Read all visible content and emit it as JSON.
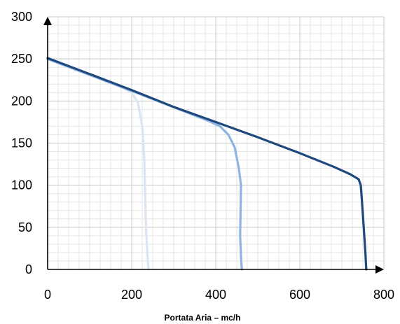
{
  "chart_data": {
    "type": "line",
    "title": "",
    "xlabel": "Portata Aria – mc/h",
    "ylabel": "",
    "xlim": [
      0,
      800
    ],
    "ylim": [
      0,
      300
    ],
    "x_ticks": [
      "0",
      "200",
      "400",
      "600",
      "800"
    ],
    "y_ticks": [
      "0",
      "50",
      "100",
      "150",
      "200",
      "250",
      "300"
    ],
    "grid": true,
    "legend": "none",
    "series": [
      {
        "color": "#dbe5f1",
        "points": [
          [
            0,
            250
          ],
          [
            100,
            231
          ],
          [
            170,
            218
          ],
          [
            200,
            210
          ],
          [
            215,
            198
          ],
          [
            225,
            170
          ],
          [
            230,
            130
          ],
          [
            232,
            90
          ],
          [
            234,
            50
          ],
          [
            237,
            20
          ],
          [
            240,
            0
          ]
        ]
      },
      {
        "color": "#8eb4e3",
        "points": [
          [
            0,
            250
          ],
          [
            200,
            212
          ],
          [
            380,
            177
          ],
          [
            410,
            170
          ],
          [
            430,
            160
          ],
          [
            445,
            145
          ],
          [
            455,
            120
          ],
          [
            460,
            100
          ],
          [
            459,
            70
          ],
          [
            458,
            40
          ],
          [
            460,
            15
          ],
          [
            462,
            0
          ]
        ]
      },
      {
        "color": "#1f497d",
        "points": [
          [
            0,
            251
          ],
          [
            100,
            232
          ],
          [
            200,
            213
          ],
          [
            300,
            193
          ],
          [
            400,
            175
          ],
          [
            500,
            157
          ],
          [
            600,
            138
          ],
          [
            680,
            122
          ],
          [
            720,
            113
          ],
          [
            740,
            107
          ],
          [
            745,
            100
          ],
          [
            748,
            80
          ],
          [
            752,
            50
          ],
          [
            756,
            20
          ],
          [
            758,
            0
          ]
        ]
      }
    ]
  }
}
